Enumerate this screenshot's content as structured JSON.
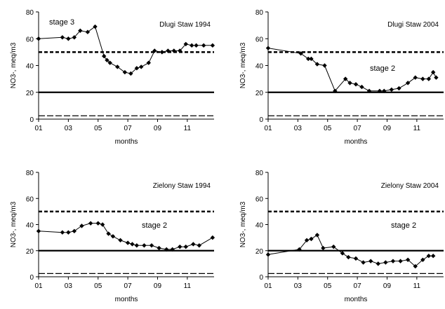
{
  "chart_data": [
    {
      "type": "line",
      "title": "Dlugi Staw 1994",
      "annotation": "stage 3",
      "xlabel": "months",
      "ylabel": "NO3-, meq/m3",
      "xticks": [
        "01",
        "03",
        "05",
        "07",
        "09",
        "11"
      ],
      "yticks": [
        "0",
        "20",
        "40",
        "60",
        "80"
      ],
      "xlim": [
        1,
        12.8
      ],
      "ylim": [
        0,
        80
      ],
      "grid": false,
      "reference_lines": [
        {
          "y": 50,
          "style": "dotted-thick"
        },
        {
          "y": 20,
          "style": "solid-thick"
        },
        {
          "y": 2.5,
          "style": "dashed-thin"
        }
      ],
      "series": [
        {
          "x": [
            1.0,
            2.6,
            3.0,
            3.4,
            3.8,
            4.3,
            4.8,
            5.4,
            5.6,
            5.8,
            6.3,
            6.8,
            7.2,
            7.6,
            7.9,
            8.4,
            8.8,
            9.3,
            9.7,
            10.1,
            10.5,
            10.9,
            11.3,
            11.6,
            12.1,
            12.7
          ],
          "y": [
            60,
            61,
            60,
            61,
            66,
            65,
            69,
            47,
            44,
            42,
            39,
            35,
            34,
            38,
            39,
            42,
            51,
            50,
            51,
            51,
            51,
            56,
            55,
            55,
            55,
            55
          ]
        }
      ]
    },
    {
      "type": "line",
      "title": "Dlugi Staw 2004",
      "annotation": "stage 2",
      "xlabel": "months",
      "ylabel": "NO3-, meq/m3",
      "xticks": [
        "01",
        "03",
        "05",
        "07",
        "09",
        "11"
      ],
      "yticks": [
        "0",
        "20",
        "40",
        "60",
        "80"
      ],
      "xlim": [
        1,
        12.8
      ],
      "ylim": [
        0,
        80
      ],
      "grid": false,
      "reference_lines": [
        {
          "y": 50,
          "style": "dotted-thick"
        },
        {
          "y": 20,
          "style": "solid-thick"
        },
        {
          "y": 2.5,
          "style": "dashed-thin"
        }
      ],
      "series": [
        {
          "x": [
            1.0,
            3.2,
            3.7,
            3.9,
            4.3,
            4.8,
            5.5,
            6.2,
            6.5,
            6.9,
            7.3,
            7.8,
            8.5,
            8.8,
            9.3,
            9.8,
            10.4,
            10.9,
            11.4,
            11.8,
            12.1,
            12.3
          ],
          "y": [
            53,
            49,
            45,
            45,
            41,
            40,
            21,
            30,
            27,
            26,
            24,
            21,
            21,
            21,
            22,
            23,
            27,
            31,
            30,
            30,
            35,
            31
          ]
        }
      ]
    },
    {
      "type": "line",
      "title": "Zielony Staw 1994",
      "annotation": "stage 2",
      "xlabel": "months",
      "ylabel": "NO3-, meq/m3",
      "xticks": [
        "01",
        "03",
        "05",
        "07",
        "09",
        "11"
      ],
      "yticks": [
        "0",
        "20",
        "40",
        "60",
        "80"
      ],
      "xlim": [
        1,
        12.8
      ],
      "ylim": [
        0,
        80
      ],
      "grid": false,
      "reference_lines": [
        {
          "y": 50,
          "style": "dotted-thick"
        },
        {
          "y": 20,
          "style": "solid-thick"
        },
        {
          "y": 2.5,
          "style": "dashed-thin"
        }
      ],
      "series": [
        {
          "x": [
            1.0,
            2.6,
            3.0,
            3.4,
            3.9,
            4.5,
            5.0,
            5.3,
            5.7,
            6.0,
            6.5,
            7.0,
            7.3,
            7.6,
            8.1,
            8.6,
            9.1,
            9.6,
            10.0,
            10.5,
            10.9,
            11.4,
            11.8,
            12.7
          ],
          "y": [
            35,
            34,
            34,
            35,
            39,
            41,
            41,
            40,
            33,
            31,
            28,
            26,
            25,
            24,
            24,
            24,
            22,
            21,
            21,
            23,
            23,
            25,
            24,
            30
          ]
        }
      ]
    },
    {
      "type": "line",
      "title": "Zielony Staw 2004",
      "annotation": "stage 2",
      "xlabel": "months",
      "ylabel": "NO3-, meq/m3",
      "xticks": [
        "01",
        "03",
        "05",
        "07",
        "09",
        "11"
      ],
      "yticks": [
        "0",
        "20",
        "40",
        "60",
        "80"
      ],
      "xlim": [
        1,
        12.8
      ],
      "ylim": [
        0,
        80
      ],
      "grid": false,
      "reference_lines": [
        {
          "y": 50,
          "style": "dotted-thick"
        },
        {
          "y": 20,
          "style": "solid-thick"
        },
        {
          "y": 2.5,
          "style": "dashed-thin"
        }
      ],
      "series": [
        {
          "x": [
            1.0,
            3.1,
            3.6,
            3.9,
            4.3,
            4.7,
            5.4,
            6.0,
            6.4,
            6.9,
            7.4,
            7.9,
            8.4,
            8.9,
            9.4,
            9.9,
            10.4,
            10.9,
            11.4,
            11.8,
            12.1
          ],
          "y": [
            17,
            21,
            28,
            29,
            32,
            22,
            23,
            18,
            15,
            14,
            11,
            12,
            10,
            11,
            12,
            12,
            13,
            8,
            13,
            16,
            16
          ]
        }
      ]
    }
  ]
}
